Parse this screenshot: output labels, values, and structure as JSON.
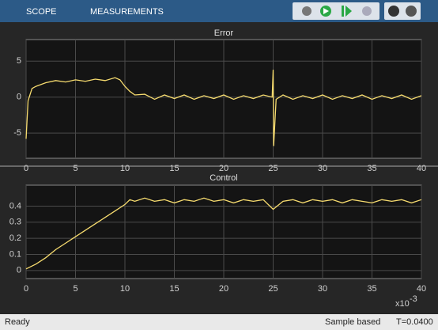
{
  "toolbar": {
    "tabs": [
      "SCOPE",
      "MEASUREMENTS"
    ]
  },
  "chart_data": [
    {
      "type": "line",
      "title": "Error",
      "color": "#f7dc6f",
      "grid": true,
      "x": [
        0,
        0.2,
        0.6,
        1,
        2,
        3,
        4,
        5,
        6,
        7,
        8,
        9,
        9.5,
        10,
        10.5,
        11,
        12,
        13,
        14,
        15,
        16,
        17,
        18,
        19,
        20,
        21,
        22,
        23,
        24,
        24.9,
        25,
        25.05,
        25.3,
        26,
        27,
        28,
        29,
        30,
        31,
        32,
        33,
        34,
        35,
        36,
        37,
        38,
        39,
        40
      ],
      "values": [
        -5.8,
        -0.5,
        1.2,
        1.5,
        2.0,
        2.3,
        2.1,
        2.4,
        2.2,
        2.5,
        2.3,
        2.7,
        2.4,
        1.5,
        0.8,
        0.3,
        0.4,
        -0.3,
        0.3,
        -0.2,
        0.3,
        -0.3,
        0.2,
        -0.2,
        0.3,
        -0.3,
        0.2,
        -0.2,
        0.3,
        0.0,
        3.8,
        -6.8,
        -0.3,
        0.3,
        -0.3,
        0.2,
        -0.2,
        0.3,
        -0.3,
        0.2,
        -0.2,
        0.3,
        -0.3,
        0.2,
        -0.2,
        0.3,
        -0.3,
        0.2
      ],
      "xlim": [
        0,
        40
      ],
      "xticks": [
        0,
        5,
        10,
        15,
        20,
        25,
        30,
        35,
        40
      ],
      "ylim": [
        -8.5,
        8
      ],
      "yticks": [
        -5,
        0,
        5
      ]
    },
    {
      "type": "line",
      "title": "Control",
      "color": "#f7dc6f",
      "grid": true,
      "x": [
        0,
        1,
        2,
        3,
        4,
        5,
        6,
        7,
        8,
        9,
        10,
        10.5,
        11,
        12,
        13,
        14,
        15,
        16,
        17,
        18,
        19,
        20,
        21,
        22,
        23,
        24,
        25,
        26,
        27,
        28,
        29,
        30,
        31,
        32,
        33,
        34,
        35,
        36,
        37,
        38,
        39,
        40
      ],
      "values": [
        0.01,
        0.04,
        0.08,
        0.13,
        0.17,
        0.21,
        0.25,
        0.29,
        0.33,
        0.37,
        0.41,
        0.44,
        0.43,
        0.45,
        0.43,
        0.44,
        0.42,
        0.44,
        0.43,
        0.45,
        0.43,
        0.44,
        0.42,
        0.44,
        0.43,
        0.44,
        0.38,
        0.43,
        0.44,
        0.42,
        0.44,
        0.43,
        0.44,
        0.42,
        0.44,
        0.43,
        0.42,
        0.44,
        0.43,
        0.44,
        0.42,
        0.44
      ],
      "xlim": [
        0,
        40
      ],
      "xticks": [
        0,
        5,
        10,
        15,
        20,
        25,
        30,
        35,
        40
      ],
      "ylim": [
        -0.05,
        0.53
      ],
      "yticks": [
        0,
        0.1,
        0.2,
        0.3,
        0.4
      ],
      "x_multiplier": "x10",
      "x_exponent": "-3"
    }
  ],
  "status": {
    "state": "Ready",
    "mode": "Sample based",
    "time": "T=0.0400"
  }
}
